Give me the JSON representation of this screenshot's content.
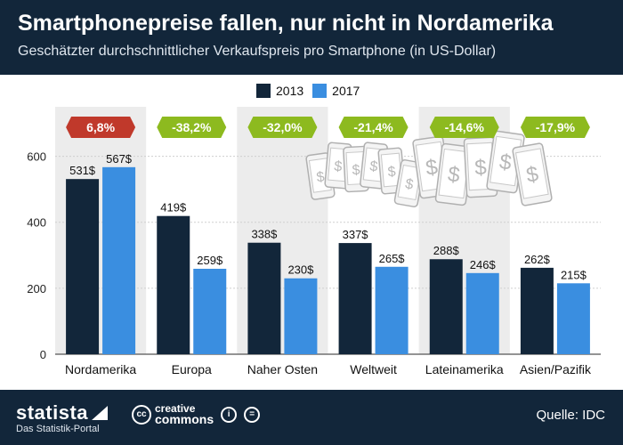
{
  "header": {
    "title": "Smartphonepreise fallen, nur nicht in Nordamerika",
    "subtitle": "Geschätzter durchschnittlicher Verkaufspreis pro Smartphone (in US-Dollar)"
  },
  "legend": {
    "items": [
      {
        "label": "2013",
        "color": "#12263a"
      },
      {
        "label": "2017",
        "color": "#3a8ee0"
      }
    ]
  },
  "chart_data": {
    "type": "bar",
    "categories": [
      "Nordamerika",
      "Europa",
      "Naher Osten",
      "Weltweit",
      "Lateinamerika",
      "Asien/Pazifik"
    ],
    "series": [
      {
        "name": "2013",
        "values": [
          531,
          419,
          338,
          337,
          288,
          262
        ],
        "labels": [
          "531$",
          "419$",
          "338$",
          "337$",
          "288$",
          "262$"
        ],
        "color": "#12263a"
      },
      {
        "name": "2017",
        "values": [
          567,
          259,
          230,
          265,
          246,
          215
        ],
        "labels": [
          "567$",
          "259$",
          "230$",
          "265$",
          "246$",
          "215$"
        ],
        "color": "#3a8ee0"
      }
    ],
    "changes": [
      "6,8%",
      "-38,2%",
      "-32,0%",
      "-21,4%",
      "-14,6%",
      "-17,9%"
    ],
    "change_colors": [
      "#c0392b",
      "#8dba1f",
      "#8dba1f",
      "#8dba1f",
      "#8dba1f",
      "#8dba1f"
    ],
    "yticks": [
      0,
      200,
      400,
      600
    ],
    "ylim": [
      0,
      750
    ],
    "grid": true,
    "legend_position": "top-center"
  },
  "footer": {
    "brand": "statista",
    "brand_tagline": "Das Statistik-Portal",
    "cc_badge": "cc",
    "cc_line1": "creative",
    "cc_line2": "commons",
    "cc_attr_symbol": "i",
    "cc_nd_symbol": "=",
    "source": "Quelle: IDC"
  }
}
